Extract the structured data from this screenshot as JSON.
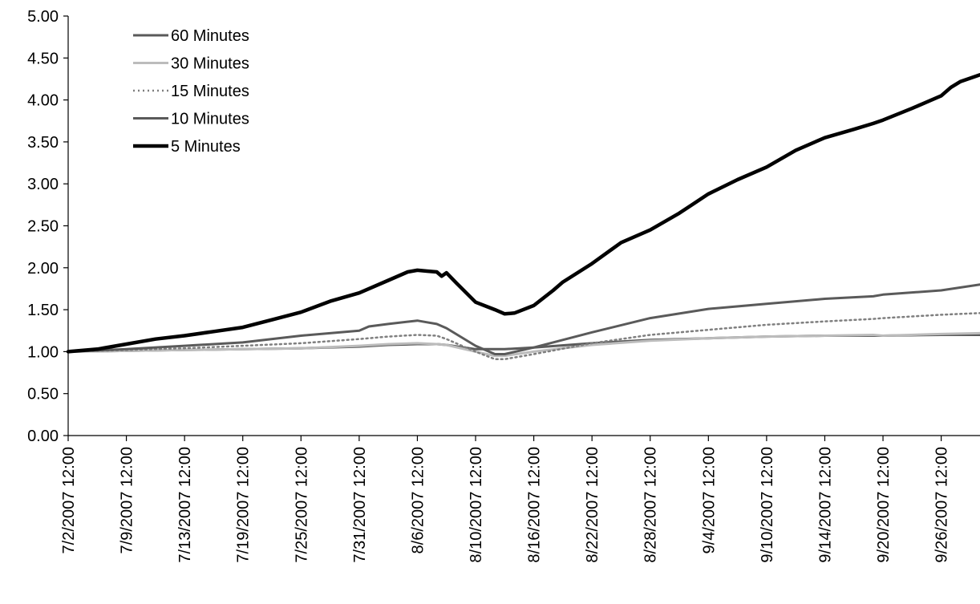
{
  "chart_data": {
    "type": "line",
    "title": "",
    "xlabel": "",
    "ylabel": "",
    "ylim": [
      0,
      5
    ],
    "yticks": [
      "0.00",
      "0.50",
      "1.00",
      "1.50",
      "2.00",
      "2.50",
      "3.00",
      "3.50",
      "4.00",
      "4.50",
      "5.00"
    ],
    "xticks": [
      "7/2/2007 12:00",
      "7/9/2007 12:00",
      "7/13/2007 12:00",
      "7/19/2007 12:00",
      "7/25/2007 12:00",
      "7/31/2007 12:00",
      "8/6/2007 12:00",
      "8/10/2007 12:00",
      "8/16/2007 12:00",
      "8/22/2007 12:00",
      "8/28/2007 12:00",
      "9/4/2007 12:00",
      "9/10/2007 12:00",
      "9/14/2007 12:00",
      "9/20/2007 12:00",
      "9/26/2007 12:00"
    ],
    "xlim": [
      0,
      94
    ],
    "x_note": "x values are sequential observation index; tick labels are at indices 0,6,12,18,24,30,36,42,48,54,60,66,72,78,84,90",
    "grid": false,
    "legend_position": "top-left",
    "series": [
      {
        "name": "60 Minutes",
        "color": "#5a5a5a",
        "style": "solid",
        "x": [
          0,
          6,
          12,
          18,
          24,
          30,
          33,
          36,
          38,
          39,
          42,
          45,
          48,
          54,
          60,
          66,
          72,
          78,
          83,
          84,
          90,
          94
        ],
        "y": [
          1.0,
          1.01,
          1.02,
          1.03,
          1.04,
          1.06,
          1.08,
          1.09,
          1.09,
          1.08,
          1.03,
          1.03,
          1.05,
          1.1,
          1.14,
          1.16,
          1.18,
          1.19,
          1.19,
          1.19,
          1.2,
          1.2
        ]
      },
      {
        "name": "30 Minutes",
        "color": "#bcbcbc",
        "style": "solid",
        "x": [
          0,
          6,
          12,
          18,
          24,
          30,
          33,
          36,
          38,
          39,
          42,
          44,
          45,
          48,
          54,
          60,
          66,
          72,
          78,
          83,
          84,
          90,
          94
        ],
        "y": [
          1.0,
          1.01,
          1.02,
          1.03,
          1.04,
          1.07,
          1.09,
          1.1,
          1.09,
          1.08,
          1.0,
          0.95,
          0.95,
          1.0,
          1.08,
          1.13,
          1.16,
          1.18,
          1.19,
          1.2,
          1.19,
          1.21,
          1.22
        ]
      },
      {
        "name": "15 Minutes",
        "color": "#7f7f7f",
        "style": "dotted",
        "x": [
          0,
          6,
          12,
          18,
          24,
          30,
          33,
          36,
          38,
          39,
          42,
          44,
          45,
          48,
          54,
          60,
          66,
          72,
          78,
          83,
          84,
          90,
          94
        ],
        "y": [
          1.0,
          1.02,
          1.04,
          1.07,
          1.1,
          1.15,
          1.18,
          1.2,
          1.19,
          1.15,
          1.0,
          0.91,
          0.91,
          0.97,
          1.1,
          1.2,
          1.26,
          1.32,
          1.36,
          1.39,
          1.4,
          1.44,
          1.46
        ]
      },
      {
        "name": "10 Minutes",
        "color": "#5a5a5a",
        "style": "solid",
        "x": [
          0,
          6,
          12,
          18,
          24,
          30,
          31,
          33,
          36,
          37,
          38,
          39,
          42,
          44,
          45,
          48,
          54,
          60,
          66,
          72,
          78,
          83,
          84,
          90,
          94
        ],
        "y": [
          1.0,
          1.03,
          1.07,
          1.11,
          1.19,
          1.25,
          1.3,
          1.33,
          1.37,
          1.35,
          1.33,
          1.28,
          1.07,
          0.97,
          0.97,
          1.05,
          1.23,
          1.4,
          1.51,
          1.57,
          1.63,
          1.66,
          1.68,
          1.73,
          1.8
        ]
      },
      {
        "name": "5 Minutes",
        "color": "#000000",
        "style": "solid",
        "x": [
          0,
          3,
          6,
          9,
          12,
          15,
          18,
          21,
          24,
          27,
          30,
          33,
          35,
          36,
          37,
          38,
          38.5,
          39,
          40,
          42,
          44,
          45,
          46,
          48,
          50,
          51,
          54,
          57,
          60,
          63,
          66,
          69,
          72,
          75,
          78,
          81,
          83,
          84,
          87,
          90,
          91,
          92,
          94
        ],
        "y": [
          1.0,
          1.03,
          1.09,
          1.15,
          1.19,
          1.24,
          1.29,
          1.38,
          1.47,
          1.6,
          1.7,
          1.85,
          1.95,
          1.97,
          1.96,
          1.95,
          1.9,
          1.94,
          1.82,
          1.59,
          1.5,
          1.45,
          1.46,
          1.55,
          1.73,
          1.83,
          2.05,
          2.3,
          2.45,
          2.65,
          2.88,
          3.05,
          3.2,
          3.4,
          3.55,
          3.65,
          3.72,
          3.76,
          3.9,
          4.05,
          4.15,
          4.22,
          4.3
        ]
      }
    ]
  }
}
